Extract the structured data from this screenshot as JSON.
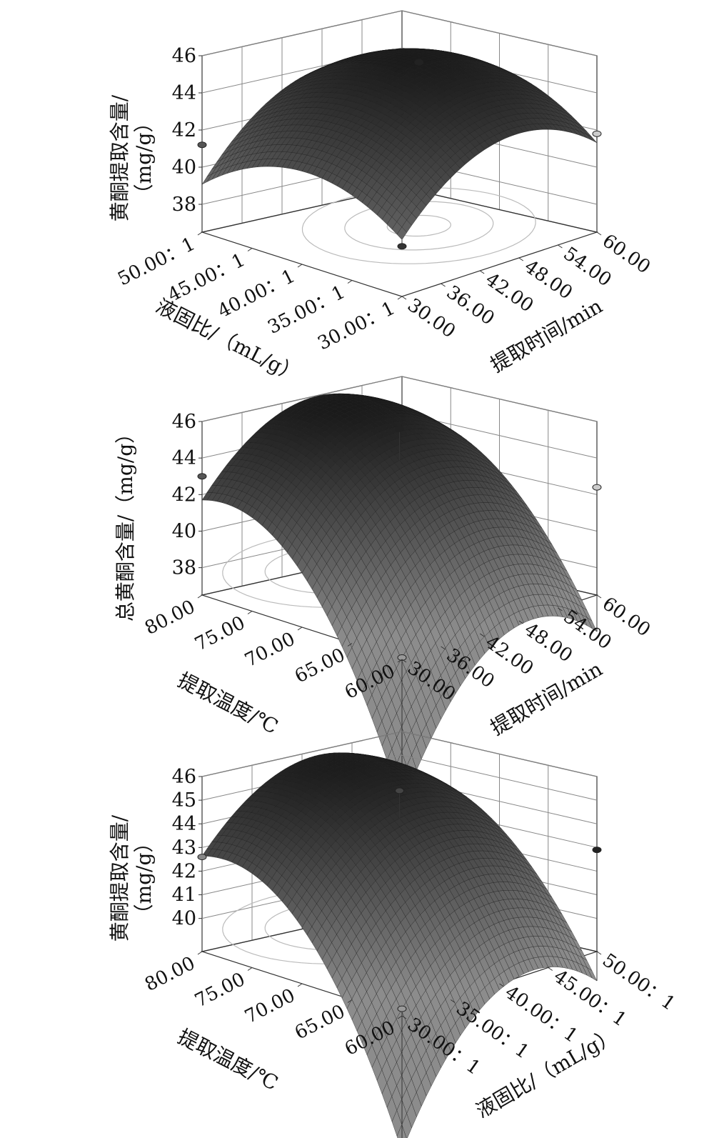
{
  "chart_data": [
    {
      "type": "surface3d",
      "z_label_lines": [
        "黄酮提取含量/",
        "（mg/g）"
      ],
      "z_ticks": [
        "38",
        "40",
        "42",
        "44",
        "46"
      ],
      "zlim": [
        36.5,
        46
      ],
      "left_axis": {
        "label": "液固比/（mL/g）",
        "ticks": [
          "50.00：1",
          "45.00：1",
          "40.00：1",
          "35.00：1",
          "30.00：1"
        ],
        "range": [
          30,
          50
        ]
      },
      "right_axis": {
        "label": "提取时间/min",
        "ticks": [
          "30.00",
          "36.00",
          "42.00",
          "48.00",
          "54.00",
          "60.00"
        ],
        "range": [
          30,
          60
        ]
      },
      "surface": {
        "left_center": 0.5,
        "right_center": 0.6,
        "peak": 45.4,
        "left_curvature": 2.2,
        "right_curvature": 2.7,
        "interaction": 0.8
      },
      "design_points": [
        {
          "left": 50,
          "right": 30,
          "z": 41.2,
          "fill": "#555555"
        },
        {
          "left": 30,
          "right": 60,
          "z": 41.8,
          "fill": "#cccccc"
        },
        {
          "left": 30,
          "right": 30,
          "z": 39.2,
          "fill": "#333333"
        },
        {
          "left": 40,
          "right": 48,
          "z": 45.3,
          "fill": "#222222"
        }
      ]
    },
    {
      "type": "surface3d",
      "z_label_lines": [
        "总黄酮含量/（mg/g）"
      ],
      "z_ticks": [
        "38",
        "40",
        "42",
        "44",
        "46"
      ],
      "zlim": [
        36.5,
        46
      ],
      "left_axis": {
        "label": "提取温度/℃",
        "ticks": [
          "80.00",
          "75.00",
          "70.00",
          "65.00",
          "60.00"
        ],
        "range": [
          60,
          80
        ]
      },
      "right_axis": {
        "label": "提取时间/min",
        "ticks": [
          "30.00",
          "36.00",
          "42.00",
          "48.00",
          "54.00",
          "60.00"
        ],
        "range": [
          30,
          60
        ]
      },
      "surface": {
        "left_center": 0.85,
        "right_center": 0.55,
        "peak": 45.6,
        "left_curvature": 3.0,
        "right_curvature": 3.0,
        "interaction": 0.0,
        "corner_drop": 4.8
      },
      "design_points": [
        {
          "left": 80,
          "right": 30,
          "z": 43.0,
          "fill": "#555555"
        },
        {
          "left": 60,
          "right": 60,
          "z": 42.4,
          "fill": "#cccccc"
        },
        {
          "left": 60,
          "right": 30,
          "z": 36.6,
          "fill": "#999999"
        },
        {
          "left": 70,
          "right": 45,
          "z": 45.6,
          "fill": "#222222"
        }
      ]
    },
    {
      "type": "surface3d",
      "z_label_lines": [
        "黄酮提取含量/",
        "（mg/g）"
      ],
      "z_ticks": [
        "40",
        "41",
        "42",
        "43",
        "44",
        "45",
        "46"
      ],
      "zlim": [
        38.6,
        46
      ],
      "left_axis": {
        "label": "提取温度/℃",
        "ticks": [
          "80.00",
          "75.00",
          "70.00",
          "65.00",
          "60.00"
        ],
        "range": [
          60,
          80
        ]
      },
      "right_axis": {
        "label": "液固比/（mL/g）",
        "ticks": [
          "30.00：1",
          "35.00：1",
          "40.00：1",
          "45.00：1",
          "50.00：1"
        ],
        "range": [
          30,
          50
        ]
      },
      "surface": {
        "left_center": 0.85,
        "right_center": 0.55,
        "peak": 45.5,
        "left_curvature": 2.2,
        "right_curvature": 2.2,
        "interaction": 0.0,
        "corner_drop": 3.6
      },
      "design_points": [
        {
          "left": 80,
          "right": 30,
          "z": 42.6,
          "fill": "#888888"
        },
        {
          "left": 60,
          "right": 50,
          "z": 42.9,
          "fill": "#222222"
        },
        {
          "left": 60,
          "right": 30,
          "z": 38.9,
          "fill": "#999999"
        },
        {
          "left": 70,
          "right": 40,
          "z": 45.4,
          "fill": "#444444"
        }
      ]
    }
  ]
}
